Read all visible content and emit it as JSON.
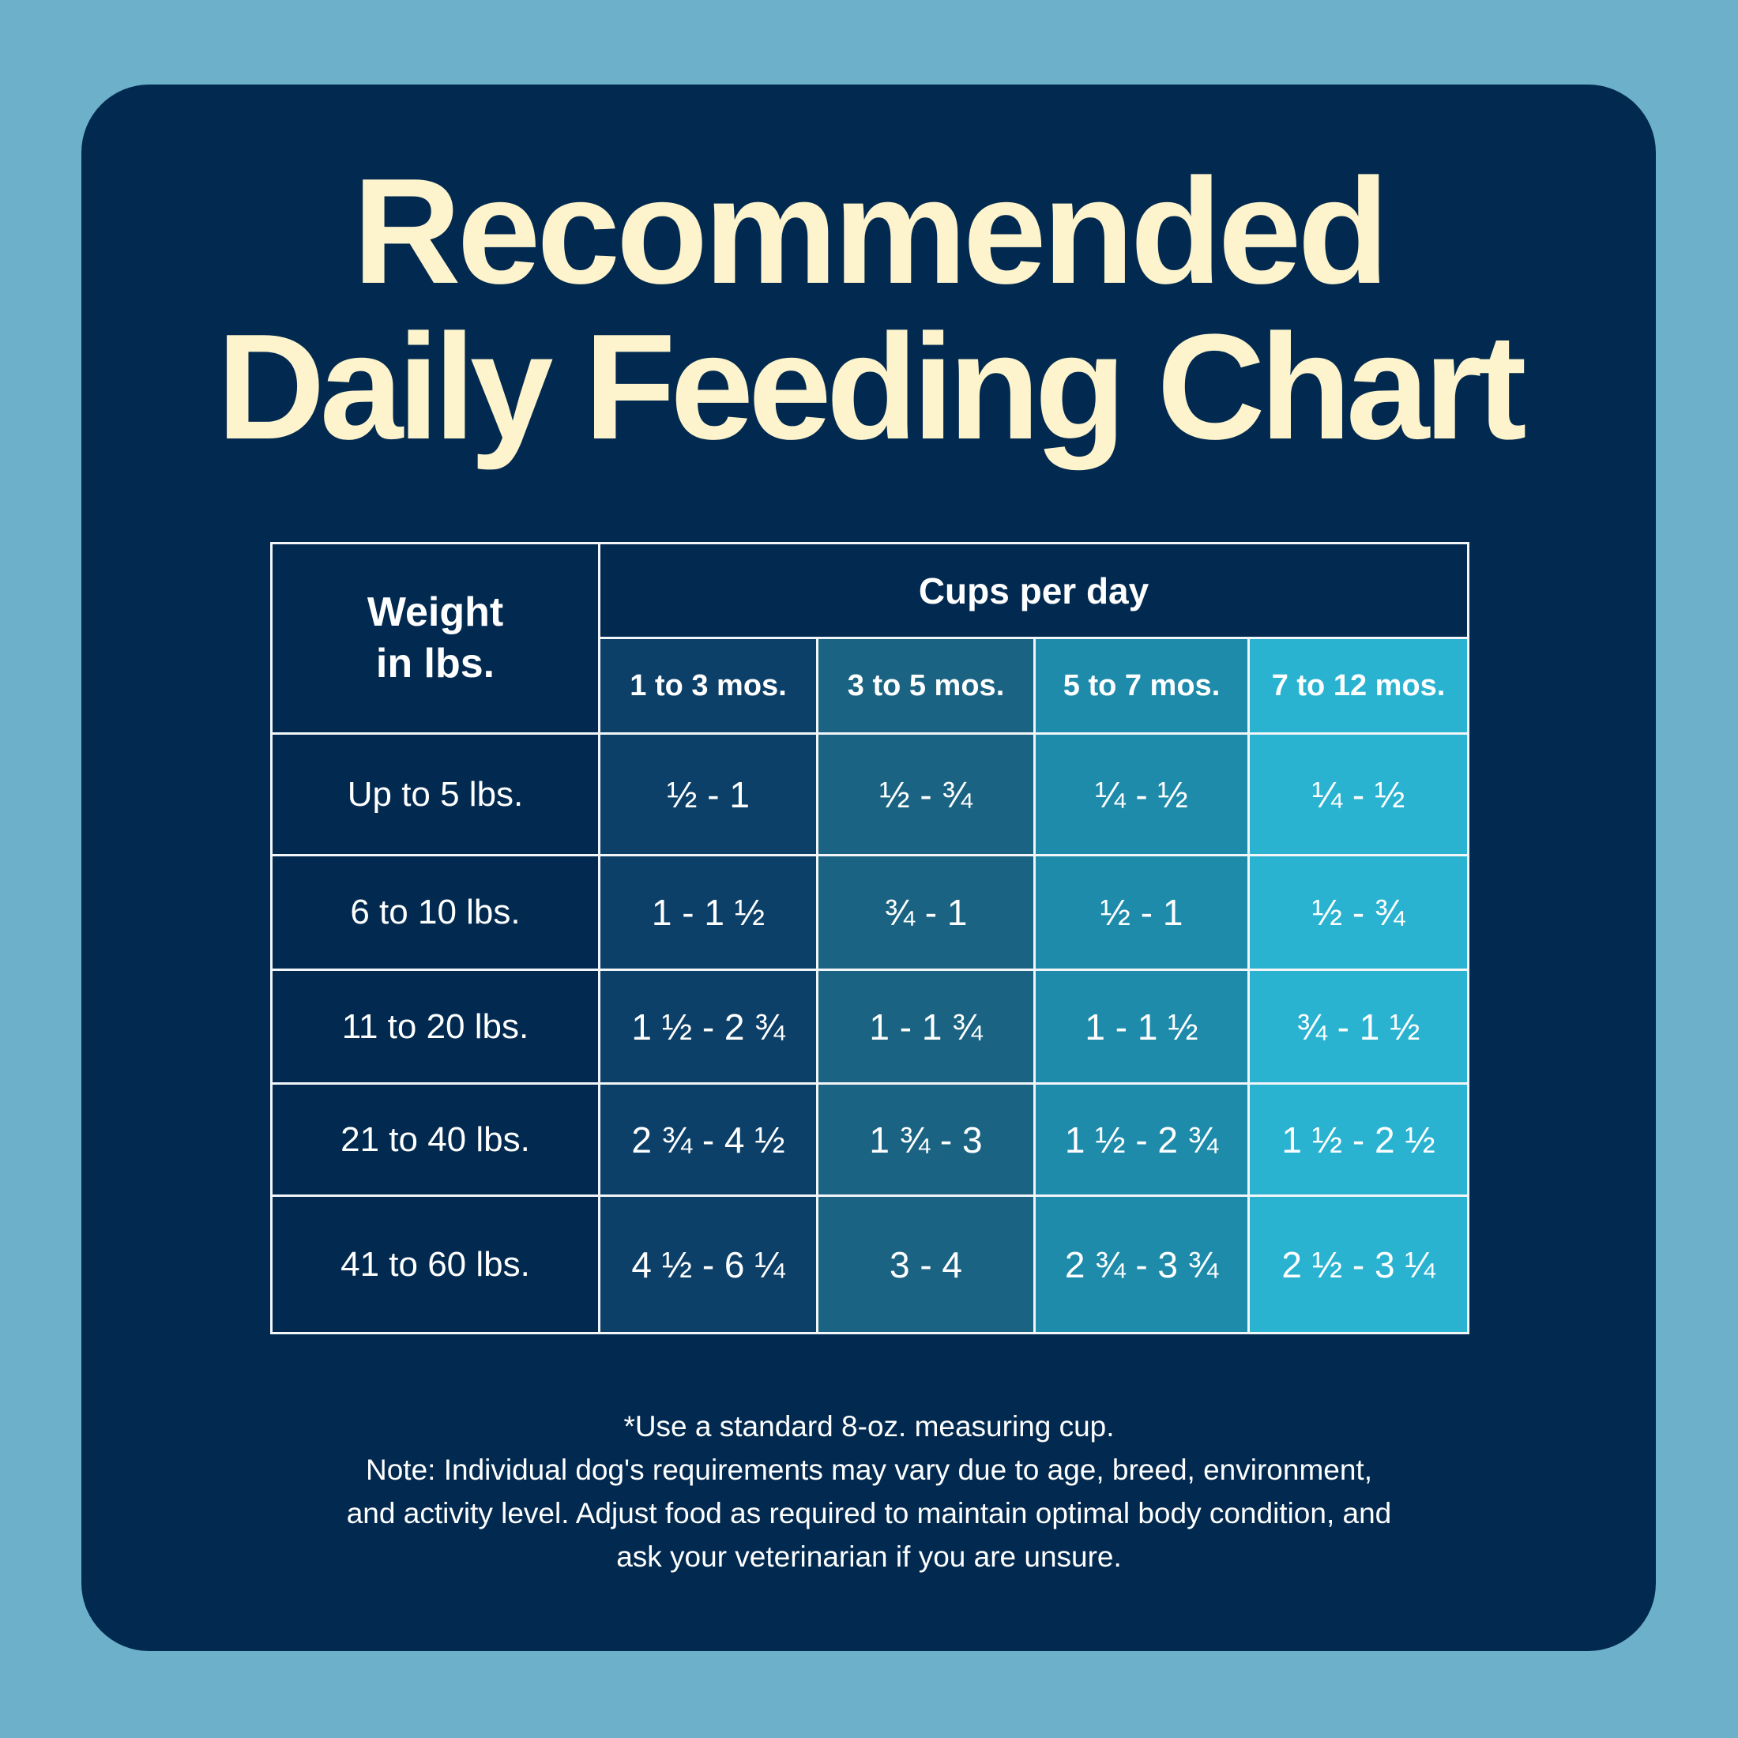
{
  "title": {
    "line1": "Recommended",
    "line2": "Daily Feeding Chart"
  },
  "colors": {
    "page_background": "#6cb1c9",
    "card": "#022a50",
    "title": "#fdf3cc",
    "col1": "#0d4068",
    "col2": "#1b6382",
    "col3": "#1f8bab",
    "col4": "#2ab3d1"
  },
  "chart_data": {
    "type": "table",
    "row_header": "Weight in lbs.",
    "group_header": "Cups per day",
    "columns": [
      "1 to 3 mos.",
      "3 to 5 mos.",
      "5 to 7 mos.",
      "7 to 12 mos."
    ],
    "rows": [
      {
        "label": "Up to 5 lbs.",
        "values": [
          "½ - 1",
          "½ - ¾",
          "¼ - ½",
          "¼ - ½"
        ]
      },
      {
        "label": "6 to 10 lbs.",
        "values": [
          "1 - 1 ½",
          "¾ - 1",
          "½ - 1",
          "½ - ¾"
        ]
      },
      {
        "label": "11 to 20 lbs.",
        "values": [
          "1 ½ - 2 ¾",
          "1 - 1 ¾",
          "1 - 1 ½",
          "¾ - 1 ½"
        ]
      },
      {
        "label": "21 to 40 lbs.",
        "values": [
          "2 ¾ - 4 ½",
          "1 ¾ - 3",
          "1 ½ - 2 ¾",
          "1 ½ - 2 ½"
        ]
      },
      {
        "label": "41 to 60 lbs.",
        "values": [
          "4 ½ - 6 ¼",
          "3 - 4",
          "2 ¾ - 3 ¾",
          "2 ½ - 3 ¼"
        ]
      }
    ]
  },
  "notes": [
    "*Use a standard 8-oz. measuring cup.",
    "Note: Individual dog's requirements may vary due to age, breed, environment,",
    "and activity level. Adjust food as required to maintain optimal body condition, and",
    "ask your veterinarian if you are unsure."
  ]
}
